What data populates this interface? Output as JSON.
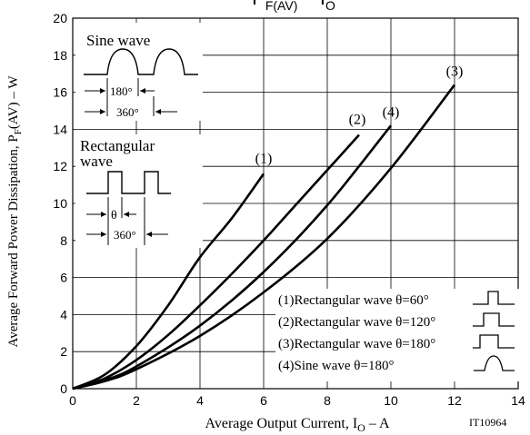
{
  "chart_data": {
    "type": "line",
    "title_parts": {
      "pf": "P",
      "pf_sub": "F(AV)",
      "sep": " – ",
      "io": "I",
      "io_sub": "O"
    },
    "xlabel_parts": {
      "pre": "Average Output Current, I",
      "sub": "O",
      "post": " – A"
    },
    "ylabel_parts": {
      "pre": "Average Forward Power Dissipation, P",
      "sub": "F",
      "post": "(AV) – W"
    },
    "xlim": [
      0,
      14
    ],
    "ylim": [
      0,
      20
    ],
    "x_ticks": [
      "0",
      "2",
      "4",
      "6",
      "8",
      "10",
      "12",
      "14"
    ],
    "y_ticks": [
      "0",
      "2",
      "4",
      "6",
      "8",
      "10",
      "12",
      "14",
      "16",
      "18",
      "20"
    ],
    "grid": true,
    "figure_id": "IT10964",
    "series": [
      {
        "tag": "(1)",
        "label": "(1)Rectangular wave θ=60°",
        "x": [
          0,
          1,
          2,
          3,
          4,
          5,
          6
        ],
        "y": [
          0,
          0.75,
          2.3,
          4.5,
          7.1,
          9.2,
          11.6
        ]
      },
      {
        "tag": "(2)",
        "label": "(2)Rectangular wave θ=120°",
        "x": [
          0,
          1,
          2,
          3,
          4,
          5,
          6,
          7,
          8,
          9
        ],
        "y": [
          0,
          0.55,
          1.55,
          2.9,
          4.5,
          6.2,
          8.0,
          9.9,
          11.8,
          13.7
        ]
      },
      {
        "tag": "(3)",
        "label": "(3)Rectangular wave θ=180°",
        "x": [
          0,
          1,
          2,
          4,
          6,
          8,
          10,
          12
        ],
        "y": [
          0,
          0.4,
          1.05,
          2.85,
          5.2,
          8.1,
          11.9,
          16.4
        ]
      },
      {
        "tag": "(4)",
        "label": "(4)Sine wave θ=180°",
        "x": [
          0,
          1,
          2,
          4,
          6,
          8,
          10
        ],
        "y": [
          0,
          0.45,
          1.2,
          3.4,
          6.3,
          9.9,
          14.2
        ]
      }
    ],
    "inset_sine": {
      "title": "Sine wave",
      "dim1": "180°",
      "dim2": "360°"
    },
    "inset_rect": {
      "title_line1": "Rectangular",
      "title_line2": "wave",
      "dim1": "θ",
      "dim2": "360°"
    }
  }
}
